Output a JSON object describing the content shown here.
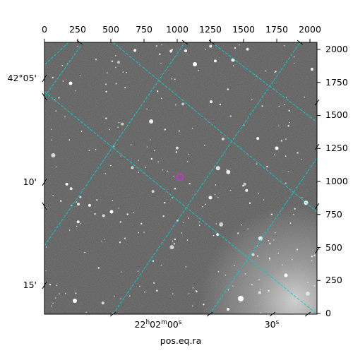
{
  "axes": {
    "top_ticks": [
      "0",
      "250",
      "500",
      "750",
      "1000",
      "1250",
      "1500",
      "1750",
      "2000"
    ],
    "right_ticks": [
      "0",
      "250",
      "500",
      "750",
      "1000",
      "1250",
      "1500",
      "1750",
      "2000"
    ],
    "left_ticks": [
      "42°05'",
      "10'",
      "15'"
    ],
    "bottom_ticks": [
      "22h02m00s",
      "30s"
    ],
    "bottom_title": "pos.eq.ra"
  },
  "image": {
    "description_colors": {
      "background": "#4a4a4a",
      "grid_line": "#00d0d0",
      "marker": "#cc33cc"
    }
  }
}
